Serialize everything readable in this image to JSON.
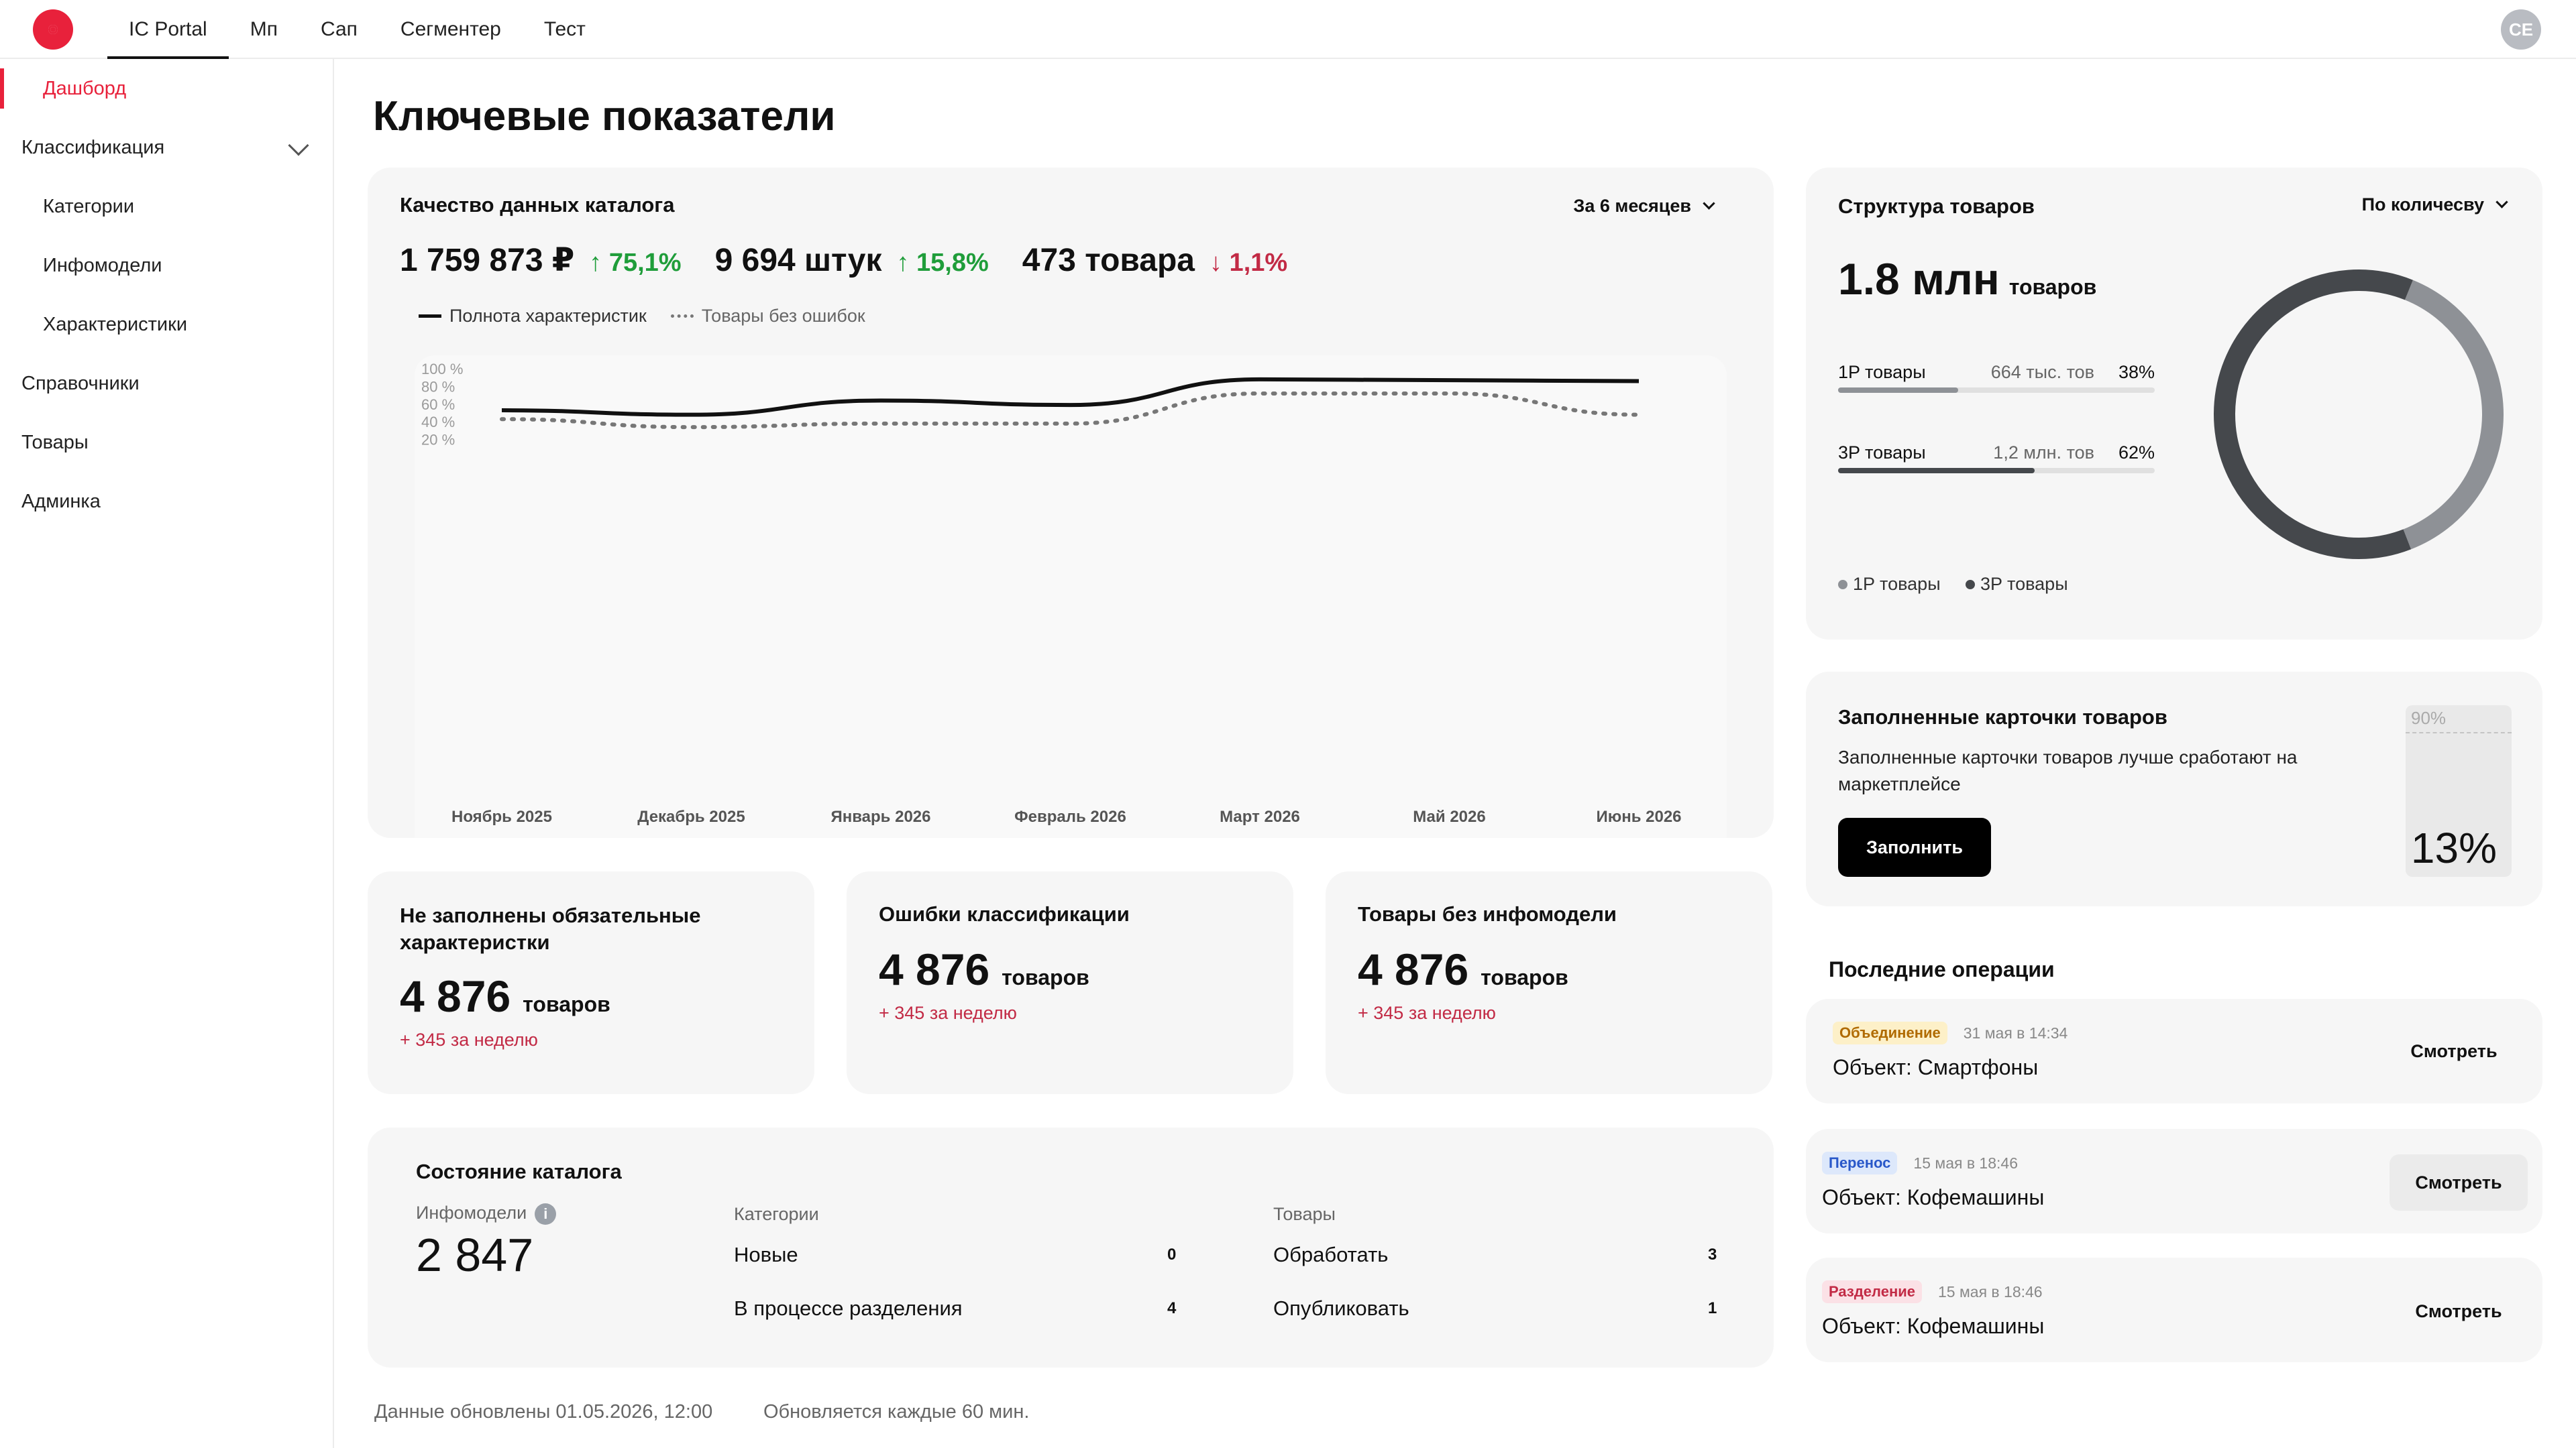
{
  "nav": {
    "tabs": [
      {
        "label": "IC Portal"
      },
      {
        "label": "Мп"
      },
      {
        "label": "Сап"
      },
      {
        "label": "Сегментер"
      },
      {
        "label": "Тест"
      }
    ],
    "user_initials": "CE",
    "brand_color": "#e8213b"
  },
  "sidebar": {
    "items": [
      {
        "label": "Дашборд"
      },
      {
        "label": "Классификация"
      },
      {
        "label": "Категории"
      },
      {
        "label": "Инфомодели"
      },
      {
        "label": "Характеристики"
      },
      {
        "label": "Справочники"
      },
      {
        "label": "Товары"
      },
      {
        "label": "Админка"
      }
    ]
  },
  "page": {
    "title": "Ключевые показатели",
    "footer_updated": "Данные обновлены 01.05.2026, 12:00",
    "footer_interval": "Обновляется каждые 60 мин."
  },
  "quality": {
    "title": "Качество данных каталога",
    "period": "За 6 месяцев",
    "kpis": [
      {
        "value": "1 759 873 ₽",
        "delta": "↑ 75,1%",
        "dir": "up"
      },
      {
        "value": "9 694 штук",
        "delta": "↑ 15,8%",
        "dir": "up"
      },
      {
        "value": "473 товара",
        "delta": "↓ 1,1%",
        "dir": "down"
      }
    ]
  },
  "chart_data": {
    "type": "line",
    "x": [
      "Ноябрь 2025",
      "Декабрь 2025",
      "Январь 2026",
      "Февраль 2026",
      "Март 2026",
      "Май 2026",
      "Июнь 2026"
    ],
    "series": [
      {
        "name": "Полнота характеристик",
        "style": "solid",
        "color": "#111111",
        "points": [
          [
            0,
            53
          ],
          [
            1,
            48
          ],
          [
            2,
            64
          ],
          [
            3,
            59
          ],
          [
            4,
            88
          ],
          [
            5,
            87
          ],
          [
            6,
            86
          ]
        ]
      },
      {
        "name": "Товары без ошибок",
        "style": "dotted",
        "color": "#777777",
        "points": [
          [
            0,
            43
          ],
          [
            1,
            34
          ],
          [
            2,
            38
          ],
          [
            3,
            38
          ],
          [
            4,
            72
          ],
          [
            5,
            72
          ],
          [
            6,
            48
          ]
        ]
      }
    ],
    "y_ticks": [
      "20 %",
      "40 %",
      "60 %",
      "80 %",
      "100 %"
    ],
    "ylim": [
      0,
      100
    ],
    "legend_position": "top-left",
    "grid": false
  },
  "stats": [
    {
      "title": "Не заполнены обязательные характеристки",
      "value": "4 876",
      "unit": "товаров",
      "week": "+ 345 за неделю"
    },
    {
      "title": "Ошибки классификации",
      "value": "4 876",
      "unit": "товаров",
      "week": "+ 345 за неделю"
    },
    {
      "title": "Товары без инфомодели",
      "value": "4 876",
      "unit": "товаров",
      "week": "+ 345 за неделю"
    }
  ],
  "catalog": {
    "title": "Состояние каталога",
    "infomodels_label": "Инфомодели",
    "infomodels_value": "2 847",
    "info_glyph": "i",
    "categories_label": "Категории",
    "categories": [
      {
        "label": "Новые",
        "count": "0"
      },
      {
        "label": "В процессе разделения",
        "count": "4"
      }
    ],
    "goods_label": "Товары",
    "goods": [
      {
        "label": "Обработать",
        "count": "3"
      },
      {
        "label": "Опубликовать",
        "count": "1"
      }
    ]
  },
  "structure": {
    "title": "Структура товаров",
    "mode": "По количесву",
    "total": "1.8 млн",
    "total_unit": "товаров",
    "segments": [
      {
        "label": "1P товары",
        "amount": "664 тыс. тов",
        "pct": "38%",
        "share": 38,
        "color": "#8e9196"
      },
      {
        "label": "3P товары",
        "amount": "1,2 млн. тов",
        "pct": "62%",
        "share": 62,
        "color": "#45484c"
      }
    ],
    "legend": [
      "1P товары",
      "3P товары"
    ]
  },
  "filled": {
    "title": "Заполненные карточки товаров",
    "text": "Заполненные карточки товаров лучше сработают на маркетплейсе",
    "button": "Заполнить",
    "target_label": "90%",
    "target": 90,
    "value_label": "13%",
    "value": 13
  },
  "ops": {
    "title": "Последние операции",
    "items": [
      {
        "badge": "Объединение",
        "badge_bg": "#fdf0c8",
        "badge_fg": "#b06a00",
        "date": "31 мая в 14:34",
        "object": "Объект: Смартфоны",
        "action": "Смотреть"
      },
      {
        "badge": "Перенос",
        "badge_bg": "#dde8fb",
        "badge_fg": "#2958c9",
        "date": "15 мая в 18:46",
        "object": "Объект: Кофемашины",
        "action": "Смотреть"
      },
      {
        "badge": "Разделение",
        "badge_bg": "#fbe1e6",
        "badge_fg": "#c22a45",
        "date": "15 мая в 18:46",
        "object": "Объект: Кофемашины",
        "action": "Смотреть"
      }
    ]
  }
}
